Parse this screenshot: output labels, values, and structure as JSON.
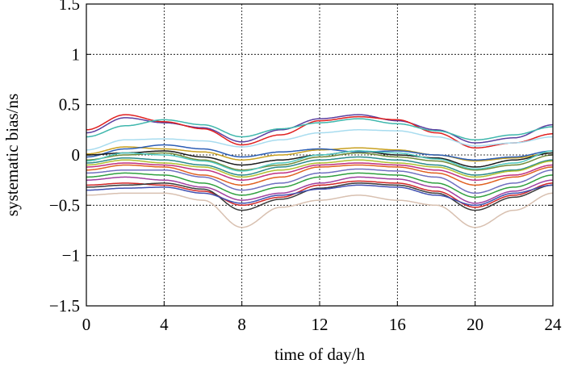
{
  "chart_data": {
    "type": "line",
    "title": "",
    "xlabel": "time of day/h",
    "ylabel": "systematic bias/ns",
    "xlim": [
      0,
      24
    ],
    "ylim": [
      -1.5,
      1.5
    ],
    "xticks": [
      0,
      4,
      8,
      12,
      16,
      20,
      24
    ],
    "yticks": [
      -1.5,
      -1,
      -0.5,
      0,
      0.5,
      1,
      1.5
    ],
    "xtick_labels": [
      "0",
      "4",
      "8",
      "12",
      "16",
      "20",
      "24"
    ],
    "ytick_labels": [
      "−1.5",
      "−1",
      "−0.5",
      "0",
      "0.5",
      "1",
      "1.5"
    ],
    "grid": true,
    "legend": "none",
    "x": [
      0,
      2,
      4,
      6,
      8,
      10,
      12,
      14,
      16,
      18,
      20,
      22,
      24
    ],
    "series": [
      {
        "color": "#5b3fa0",
        "values": [
          0.22,
          0.37,
          0.32,
          0.27,
          0.13,
          0.25,
          0.36,
          0.4,
          0.34,
          0.25,
          0.12,
          0.17,
          0.3
        ]
      },
      {
        "color": "#e02020",
        "values": [
          0.25,
          0.4,
          0.33,
          0.26,
          0.1,
          0.2,
          0.34,
          0.38,
          0.35,
          0.22,
          0.07,
          0.12,
          0.21
        ]
      },
      {
        "color": "#3fb7ad",
        "values": [
          0.18,
          0.29,
          0.35,
          0.3,
          0.18,
          0.26,
          0.32,
          0.36,
          0.31,
          0.24,
          0.15,
          0.2,
          0.28
        ]
      },
      {
        "color": "#a8dcef",
        "values": [
          0.05,
          0.15,
          0.16,
          0.14,
          0.08,
          0.15,
          0.22,
          0.25,
          0.24,
          0.18,
          0.09,
          0.12,
          0.18
        ]
      },
      {
        "color": "#c8a020",
        "values": [
          0.01,
          0.08,
          0.06,
          0.03,
          -0.05,
          0.0,
          0.05,
          0.07,
          0.05,
          0.0,
          -0.06,
          -0.03,
          0.02
        ]
      },
      {
        "color": "#2b5db5",
        "values": [
          -0.02,
          0.06,
          0.1,
          0.06,
          -0.02,
          0.03,
          0.06,
          0.03,
          0.04,
          0.0,
          -0.05,
          -0.02,
          0.04
        ]
      },
      {
        "color": "#1a1a1a",
        "values": [
          0.0,
          0.02,
          0.04,
          -0.02,
          -0.1,
          -0.05,
          0.0,
          0.04,
          0.0,
          -0.03,
          -0.12,
          -0.05,
          0.02
        ]
      },
      {
        "color": "#708a38",
        "values": [
          -0.05,
          0.0,
          0.02,
          -0.05,
          -0.15,
          -0.1,
          -0.02,
          0.02,
          -0.02,
          -0.06,
          -0.15,
          -0.1,
          0.0
        ]
      },
      {
        "color": "#2a8a8a",
        "values": [
          -0.08,
          -0.03,
          -0.05,
          -0.1,
          -0.2,
          -0.12,
          -0.05,
          -0.02,
          -0.05,
          -0.1,
          -0.2,
          -0.15,
          -0.05
        ]
      },
      {
        "color": "#c03080",
        "values": [
          -0.12,
          -0.08,
          -0.1,
          -0.15,
          -0.25,
          -0.18,
          -0.1,
          -0.08,
          -0.1,
          -0.15,
          -0.25,
          -0.2,
          -0.1
        ]
      },
      {
        "color": "#e06020",
        "values": [
          -0.15,
          -0.1,
          -0.12,
          -0.2,
          -0.3,
          -0.22,
          -0.12,
          -0.1,
          -0.12,
          -0.18,
          -0.3,
          -0.22,
          -0.12
        ]
      },
      {
        "color": "#7070c0",
        "values": [
          -0.18,
          -0.15,
          -0.15,
          -0.22,
          -0.35,
          -0.28,
          -0.18,
          -0.14,
          -0.16,
          -0.22,
          -0.38,
          -0.28,
          -0.15
        ]
      },
      {
        "color": "#30a040",
        "values": [
          -0.22,
          -0.18,
          -0.2,
          -0.28,
          -0.4,
          -0.32,
          -0.22,
          -0.18,
          -0.2,
          -0.28,
          -0.42,
          -0.32,
          -0.2
        ]
      },
      {
        "color": "#a040a0",
        "values": [
          -0.25,
          -0.22,
          -0.25,
          -0.32,
          -0.45,
          -0.38,
          -0.28,
          -0.22,
          -0.24,
          -0.32,
          -0.48,
          -0.36,
          -0.25
        ]
      },
      {
        "color": "#d02828",
        "values": [
          -0.3,
          -0.28,
          -0.3,
          -0.36,
          -0.5,
          -0.42,
          -0.3,
          -0.26,
          -0.28,
          -0.36,
          -0.52,
          -0.4,
          -0.28
        ]
      },
      {
        "color": "#3a3a3a",
        "values": [
          -0.32,
          -0.3,
          -0.28,
          -0.34,
          -0.55,
          -0.44,
          -0.33,
          -0.28,
          -0.3,
          -0.38,
          -0.55,
          -0.42,
          -0.3
        ]
      },
      {
        "color": "#4050b0",
        "values": [
          -0.35,
          -0.33,
          -0.32,
          -0.38,
          -0.48,
          -0.4,
          -0.34,
          -0.3,
          -0.32,
          -0.4,
          -0.5,
          -0.38,
          -0.3
        ]
      },
      {
        "color": "#d8c0b0",
        "values": [
          -0.4,
          -0.38,
          -0.38,
          -0.45,
          -0.72,
          -0.52,
          -0.45,
          -0.4,
          -0.45,
          -0.5,
          -0.72,
          -0.55,
          -0.38
        ]
      },
      {
        "color": "#b0c030",
        "values": [
          -0.1,
          -0.05,
          -0.08,
          -0.12,
          -0.22,
          -0.15,
          -0.08,
          -0.05,
          -0.08,
          -0.12,
          -0.22,
          -0.16,
          -0.06
        ]
      },
      {
        "color": "#50c8c0",
        "values": [
          -0.06,
          0.02,
          0.0,
          -0.06,
          -0.16,
          -0.08,
          0.0,
          0.04,
          0.02,
          -0.04,
          -0.14,
          -0.08,
          0.04
        ]
      }
    ]
  }
}
